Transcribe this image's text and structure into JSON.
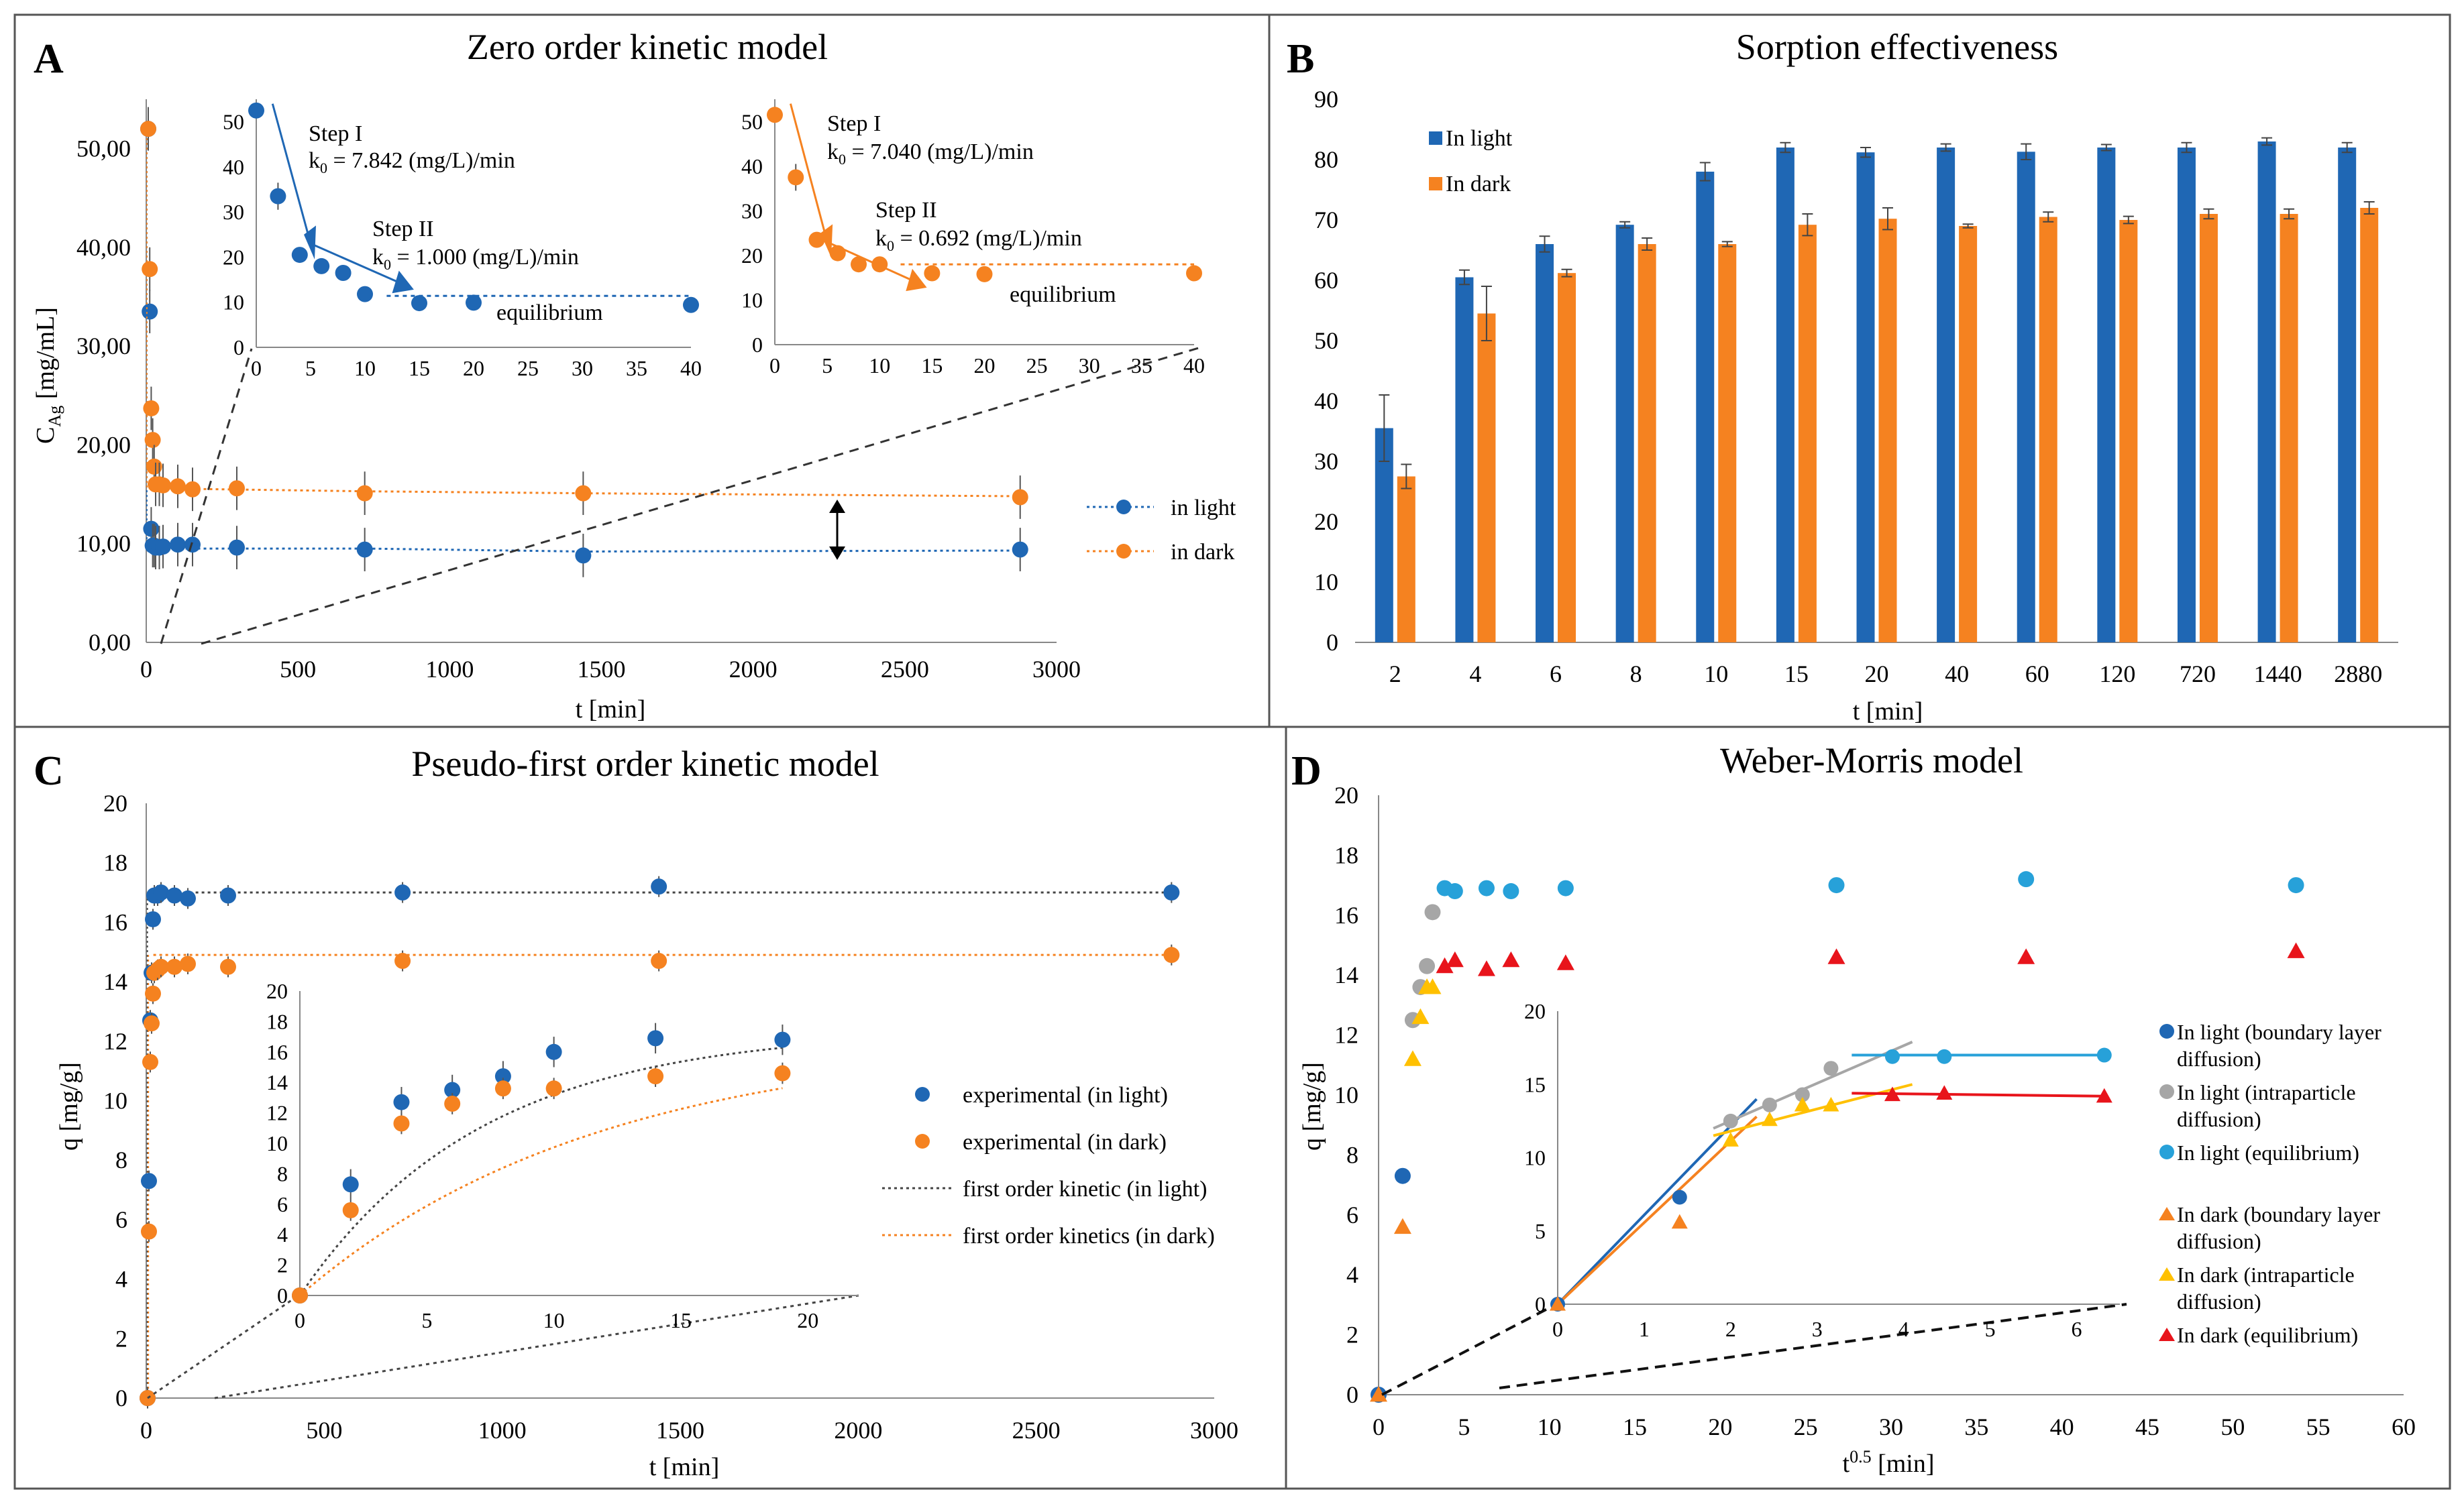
{
  "colors": {
    "blue": "#1f67b4",
    "orange": "#f58220",
    "grey": "#a6a6a6",
    "cyan": "#27a1d9",
    "yellow": "#ffc000",
    "red": "#e8141b",
    "dash": "#444444"
  },
  "chart_data": [
    {
      "id": "A",
      "type": "scatter",
      "panel_letter": "A",
      "title": "Zero order kinetic model",
      "xlabel": "t [min]",
      "ylabel_main": "C",
      "ylabel_sub": "Ag",
      "ylabel_unit": " [mg/mL]",
      "xlim": [
        0,
        3000
      ],
      "ylim": [
        0,
        55
      ],
      "xticks": [
        0,
        500,
        1000,
        1500,
        2000,
        2500,
        3000
      ],
      "yticks": [
        0,
        10,
        20,
        30,
        40,
        50
      ],
      "ytick_labels": [
        "0,00",
        "10,00",
        "20,00",
        "30,00",
        "40,00",
        "50,00"
      ],
      "series": [
        {
          "name": "in light",
          "color": "blue",
          "x": [
            0,
            2,
            4,
            6,
            8,
            10,
            15,
            20,
            40,
            60,
            120,
            720,
            1440,
            2880
          ],
          "y": [
            52,
            33.5,
            11.5,
            9.8,
            9.8,
            9.6,
            9.6,
            9.7,
            9.9,
            9.9,
            9.6,
            9.4,
            8.8,
            9.4
          ],
          "trend": [
            9.5,
            9.5,
            9.2,
            9.3
          ]
        },
        {
          "name": "in dark",
          "color": "orange",
          "x": [
            0,
            2,
            4,
            6,
            8,
            10,
            15,
            20,
            40,
            60,
            120,
            720,
            1440,
            2880
          ],
          "y": [
            52,
            37.8,
            23.7,
            20.5,
            17.8,
            16,
            16,
            15.9,
            15.8,
            15.5,
            15.6,
            15.1,
            15.1,
            14.7
          ],
          "trend": [
            15.6,
            15.3,
            15.1,
            14.8
          ]
        }
      ],
      "insets": [
        {
          "series": "in light",
          "step1": "Step I",
          "k1_label": "k",
          "k1_sub": "0",
          "k1_value": " = 7.842 (mg/L)/min",
          "step2": "Step II",
          "k2_label": "k",
          "k2_sub": "0",
          "k2_value": " = 1.000 (mg/L)/min",
          "annotation": "equilibrium",
          "xticks": [
            0,
            5,
            10,
            15,
            20,
            25,
            30,
            35,
            40
          ],
          "yticks": [
            0,
            10,
            20,
            30,
            40,
            50
          ],
          "x": [
            0,
            2,
            4,
            6,
            8,
            10,
            15,
            20,
            40
          ],
          "y": [
            52.5,
            33.5,
            20.5,
            18,
            16.5,
            11.8,
            9.8,
            9.9,
            9.4
          ]
        },
        {
          "series": "in dark",
          "step1": "Step I",
          "k1_label": "k",
          "k1_sub": "0",
          "k1_value": " = 7.040 (mg/L)/min",
          "step2": "Step II",
          "k2_label": "k",
          "k2_sub": "0",
          "k2_value": " = 0.692 (mg/L)/min",
          "annotation": "equilibrium",
          "xticks": [
            0,
            5,
            10,
            15,
            20,
            25,
            30,
            35,
            40
          ],
          "yticks": [
            0,
            10,
            20,
            30,
            40,
            50
          ],
          "x": [
            0,
            2,
            4,
            6,
            8,
            10,
            15,
            20,
            40
          ],
          "y": [
            51.5,
            37.5,
            23.5,
            20.5,
            18,
            18,
            16,
            15.8,
            16
          ]
        }
      ]
    },
    {
      "id": "B",
      "type": "bar",
      "panel_letter": "B",
      "title": "Sorption effectiveness",
      "xlabel": "t [min]",
      "ylabel": "",
      "ylim": [
        0,
        90
      ],
      "yticks": [
        0,
        10,
        20,
        30,
        40,
        50,
        60,
        70,
        80,
        90
      ],
      "categories": [
        "2",
        "4",
        "6",
        "8",
        "10",
        "15",
        "20",
        "40",
        "60",
        "120",
        "720",
        "1440",
        "2880"
      ],
      "series": [
        {
          "name": "In light",
          "color": "blue",
          "values": [
            35.5,
            60.5,
            66,
            69.2,
            78,
            82,
            81.2,
            82,
            81.3,
            82,
            82,
            83,
            82
          ],
          "errors": [
            5.5,
            1.2,
            1.3,
            0.5,
            1.5,
            0.8,
            0.8,
            0.6,
            1.3,
            0.5,
            0.8,
            0.6,
            0.8
          ]
        },
        {
          "name": "In dark",
          "color": "orange",
          "values": [
            27.5,
            54.5,
            61.2,
            66,
            66,
            69.2,
            70.2,
            69,
            70.5,
            70,
            71,
            71,
            72
          ],
          "errors": [
            2,
            4.5,
            0.6,
            1,
            0.4,
            1.8,
            1.8,
            0.3,
            0.8,
            0.6,
            0.8,
            0.8,
            1
          ]
        }
      ]
    },
    {
      "id": "C",
      "type": "scatter",
      "panel_letter": "C",
      "title": "Pseudo-first order kinetic model",
      "xlabel": "t [min]",
      "ylabel": "q [mg/g]",
      "xlim": [
        0,
        3000
      ],
      "ylim": [
        0,
        20
      ],
      "xticks": [
        0,
        500,
        1000,
        1500,
        2000,
        2500,
        3000
      ],
      "yticks": [
        0,
        2,
        4,
        6,
        8,
        10,
        12,
        14,
        16,
        18,
        20
      ],
      "series": [
        {
          "name": "experimental (in light)",
          "color": "blue",
          "x": [
            0,
            2,
            4,
            6,
            8,
            10,
            15,
            20,
            40,
            60,
            120,
            720,
            1440,
            2880
          ],
          "y": [
            0,
            7.3,
            12.7,
            14.3,
            16.1,
            16.9,
            16.9,
            17,
            16.9,
            16.8,
            16.9,
            17,
            17.2,
            17
          ]
        },
        {
          "name": "experimental (in dark)",
          "color": "orange",
          "x": [
            0,
            2,
            4,
            6,
            8,
            10,
            15,
            20,
            40,
            60,
            120,
            720,
            1440,
            2880
          ],
          "y": [
            0,
            5.6,
            11.3,
            12.6,
            13.6,
            14.3,
            14.4,
            14.5,
            14.5,
            14.6,
            14.5,
            14.7,
            14.7,
            14.9
          ]
        },
        {
          "name": "first order kinetic (in light)",
          "color": "dash",
          "asymptote": 17
        },
        {
          "name": "first order kinetics (in dark)",
          "color": "orange",
          "asymptote": 14.9
        }
      ],
      "inset": {
        "xticks": [
          0,
          5,
          10,
          15,
          20
        ],
        "yticks": [
          0,
          2,
          4,
          6,
          8,
          10,
          12,
          14,
          16,
          18,
          20
        ],
        "light_x": [
          0,
          2,
          4,
          6,
          8,
          10,
          14,
          19
        ],
        "light_y": [
          0,
          7.3,
          12.7,
          13.5,
          14.4,
          16,
          16.9,
          16.8
        ],
        "dark_x": [
          0,
          2,
          4,
          6,
          8,
          10,
          14,
          19
        ],
        "dark_y": [
          0,
          5.6,
          11.3,
          12.6,
          13.6,
          13.6,
          14.4,
          14.6
        ],
        "fit_light_k": 0.14,
        "fit_dark_k": 0.085
      }
    },
    {
      "id": "D",
      "type": "scatter",
      "panel_letter": "D",
      "title": "Weber-Morris model",
      "xlabel_main": "t",
      "xlabel_sup": "0.5",
      "xlabel_unit": " [min]",
      "ylabel": "q [mg/g]",
      "xlim": [
        0,
        60
      ],
      "ylim": [
        0,
        20
      ],
      "xticks": [
        0,
        5,
        10,
        15,
        20,
        25,
        30,
        35,
        40,
        45,
        50,
        55,
        60
      ],
      "yticks": [
        0,
        2,
        4,
        6,
        8,
        10,
        12,
        14,
        16,
        18,
        20
      ],
      "series": [
        {
          "name": "In light (boundary layer diffusion)",
          "legend_lines": [
            "In light (boundary layer",
            "diffusion)"
          ],
          "color": "blue",
          "marker": "circle",
          "x": [
            0,
            1.41
          ],
          "y": [
            0,
            7.3
          ]
        },
        {
          "name": "In light (intraparticle diffusion)",
          "legend_lines": [
            "In light (intraparticle",
            "diffusion)"
          ],
          "color": "grey",
          "marker": "circle",
          "x": [
            2,
            2.45,
            2.83,
            3.16
          ],
          "y": [
            12.5,
            13.6,
            14.3,
            16.1
          ]
        },
        {
          "name": "In light (equilibrium)",
          "legend_lines": [
            "In light (equilibrium)"
          ],
          "color": "cyan",
          "marker": "circle",
          "x": [
            3.87,
            4.47,
            6.32,
            7.75,
            10.95,
            26.8,
            37.9,
            53.7
          ],
          "y": [
            16.9,
            16.8,
            16.9,
            16.8,
            16.9,
            17,
            17.2,
            17
          ]
        },
        {
          "name": "In dark (boundary layer diffusion)",
          "legend_lines": [
            "In dark (boundary layer",
            "diffusion)"
          ],
          "color": "orange",
          "marker": "triangle",
          "x": [
            0,
            1.41
          ],
          "y": [
            0,
            5.6
          ]
        },
        {
          "name": "In dark (intraparticle diffusion)",
          "legend_lines": [
            "In dark (intraparticle",
            "diffusion)"
          ],
          "color": "yellow",
          "marker": "triangle",
          "x": [
            2,
            2.45,
            2.83,
            3.16
          ],
          "y": [
            11.2,
            12.6,
            13.6,
            13.6
          ]
        },
        {
          "name": "In dark (equilibrium)",
          "legend_lines": [
            "In dark (equilibrium)"
          ],
          "color": "red",
          "marker": "triangle",
          "x": [
            3.87,
            4.47,
            6.32,
            7.75,
            10.95,
            26.8,
            37.9,
            53.7
          ],
          "y": [
            14.3,
            14.5,
            14.2,
            14.5,
            14.4,
            14.6,
            14.6,
            14.8
          ]
        }
      ],
      "inset": {
        "xticks": [
          0,
          1,
          2,
          3,
          4,
          5,
          6
        ],
        "yticks": [
          0,
          5,
          10,
          15,
          20
        ],
        "light_pts": [
          [
            0,
            0
          ],
          [
            1.41,
            7.3
          ],
          [
            2,
            12.5
          ],
          [
            2.45,
            13.6
          ],
          [
            2.83,
            14.3
          ],
          [
            3.16,
            16.1
          ],
          [
            3.87,
            16.9
          ],
          [
            4.47,
            16.9
          ],
          [
            6.32,
            17
          ]
        ],
        "dark_pts": [
          [
            0,
            0
          ],
          [
            1.41,
            5.6
          ],
          [
            2,
            11.2
          ],
          [
            2.45,
            12.6
          ],
          [
            2.83,
            13.6
          ],
          [
            3.16,
            13.6
          ],
          [
            3.87,
            14.3
          ],
          [
            4.47,
            14.4
          ],
          [
            6.32,
            14.2
          ]
        ]
      }
    }
  ]
}
